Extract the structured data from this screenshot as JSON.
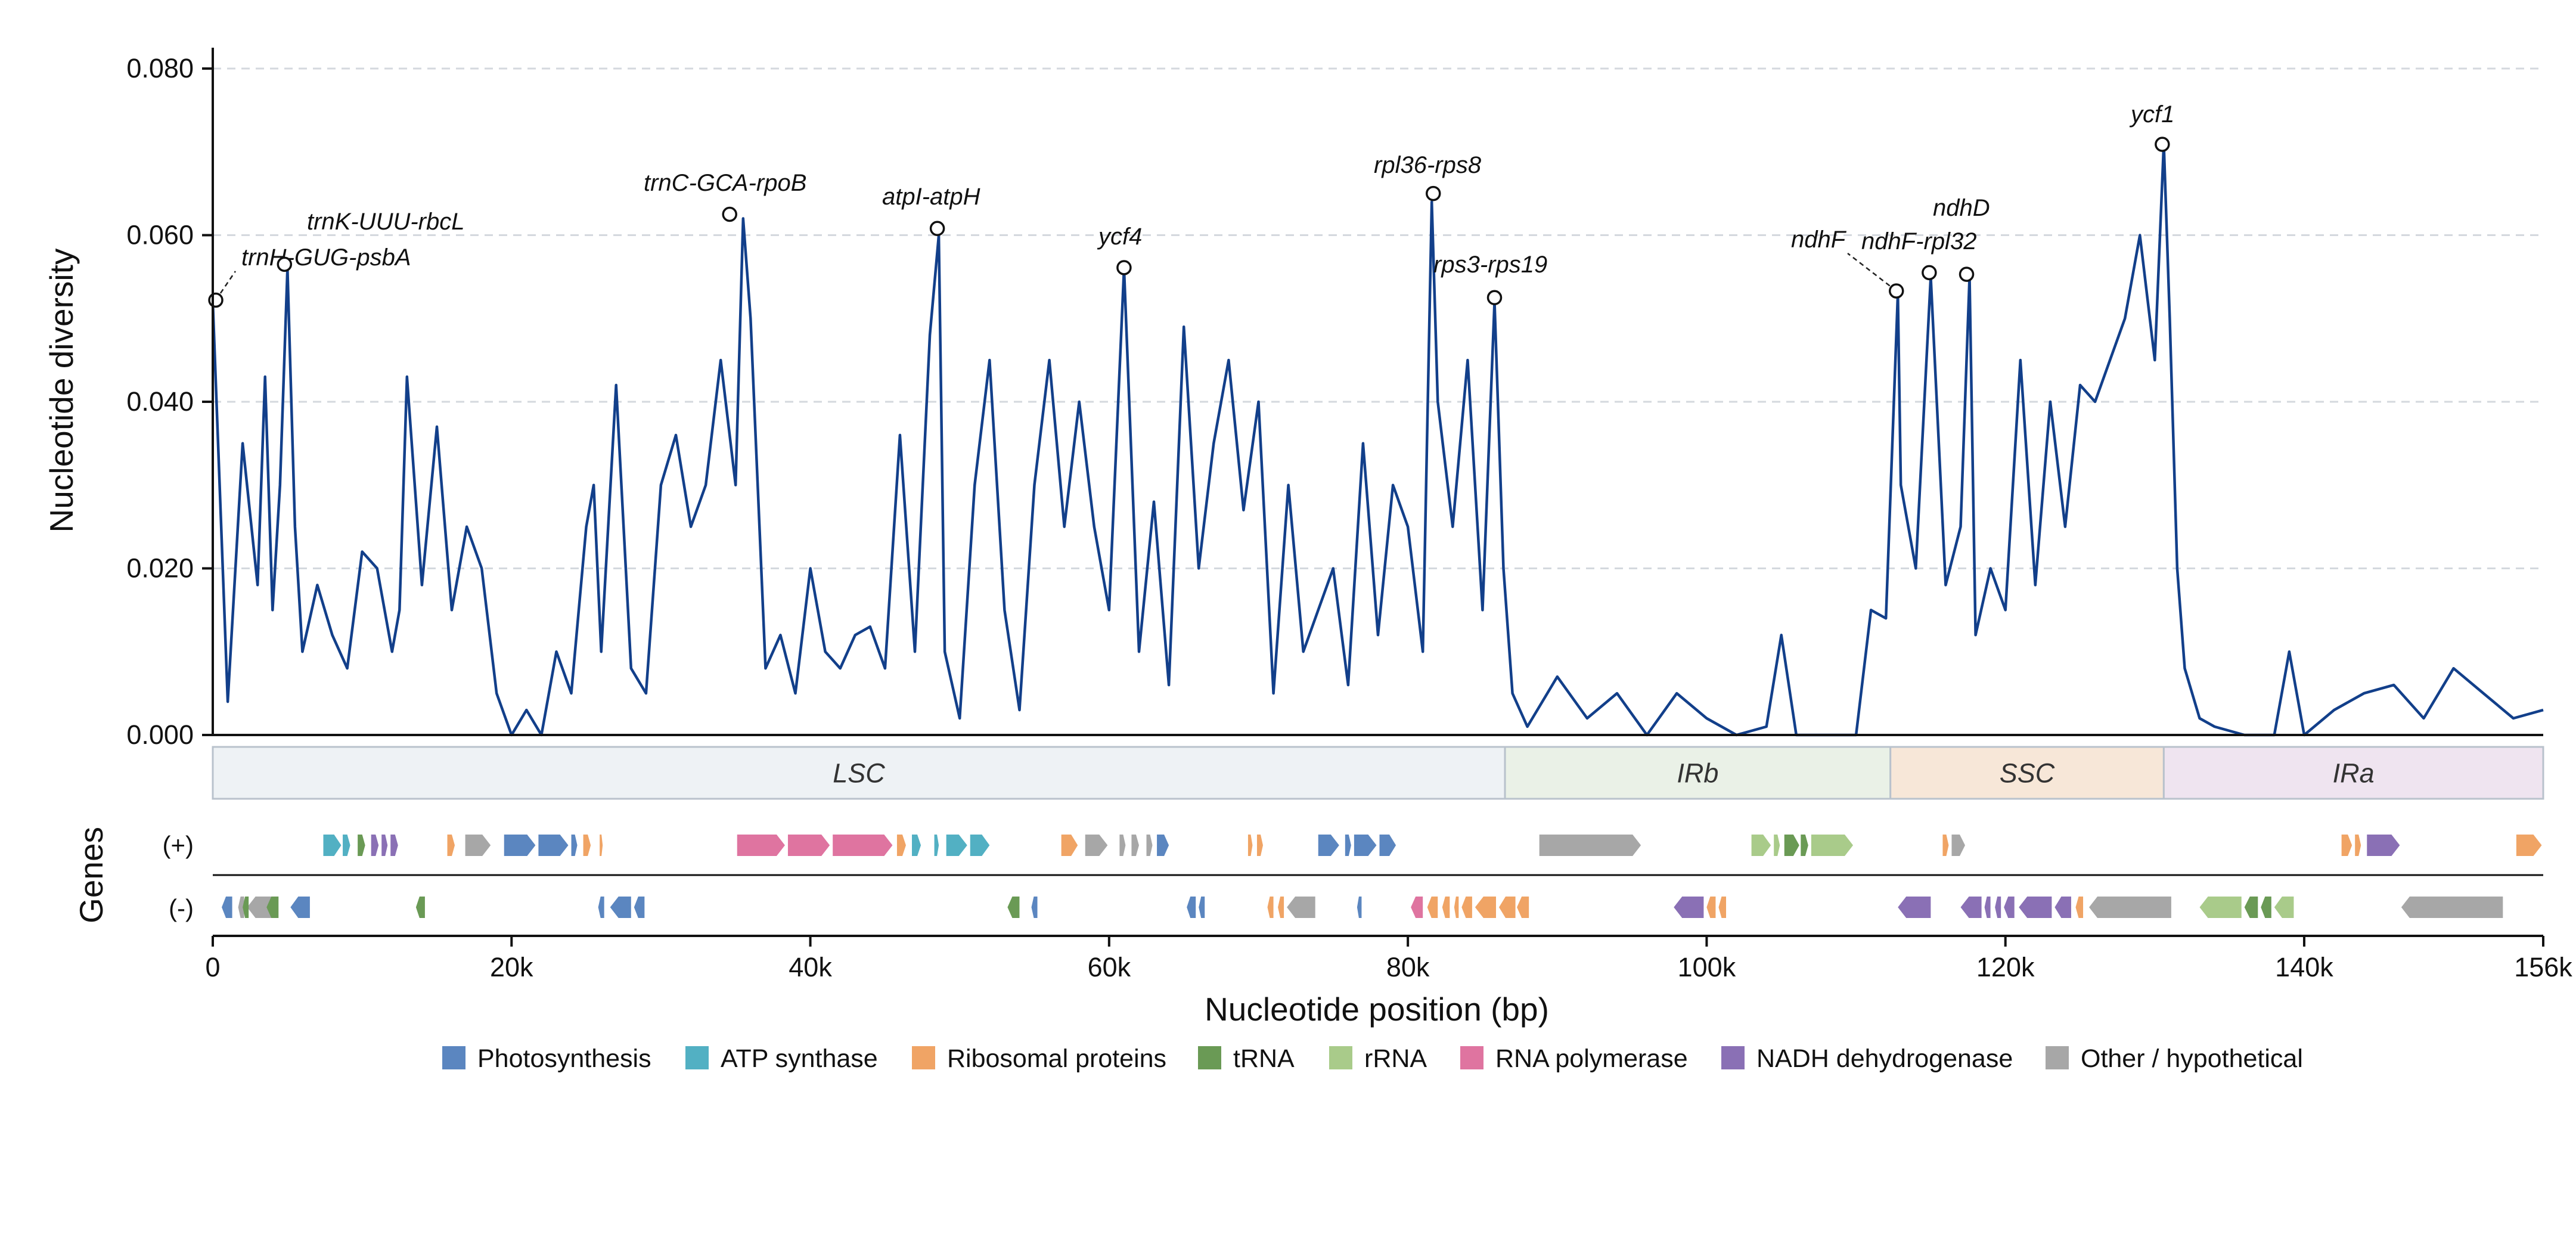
{
  "chart_data": {
    "type": "line",
    "ylabel": "Nucleotide diversity",
    "xlabel": "Nucleotide position (bp)",
    "xlim": [
      0,
      156000
    ],
    "ylim": [
      0,
      0.0825
    ],
    "yticks": [
      0.0,
      0.02,
      0.04,
      0.06,
      0.08
    ],
    "ytick_labels": [
      "0.000",
      "0.020",
      "0.040",
      "0.060",
      "0.080"
    ],
    "xticks": [
      0,
      20000,
      40000,
      60000,
      80000,
      100000,
      120000,
      140000,
      156000
    ],
    "xtick_labels": [
      "0",
      "20k",
      "40k",
      "60k",
      "80k",
      "100k",
      "120k",
      "140k",
      "156k"
    ],
    "grid": "horizontal dashed",
    "line_color": "#123f8a",
    "series": [
      {
        "x": [
          0,
          1000,
          2000,
          3000,
          3500,
          4000,
          4500,
          5000,
          5500,
          6000,
          7000,
          8000,
          9000,
          10000,
          11000,
          12000,
          12500,
          13000,
          14000,
          15000,
          16000,
          17000,
          18000,
          19000,
          20000,
          21000,
          22000,
          23000,
          24000,
          25000,
          25500,
          26000,
          27000,
          28000,
          29000,
          30000,
          31000,
          32000,
          33000,
          34000,
          35000,
          35500,
          36000,
          37000,
          38000,
          39000,
          40000,
          41000,
          42000,
          43000,
          44000,
          45000,
          46000,
          47000,
          48000,
          48600,
          49000,
          50000,
          51000,
          52000,
          53000,
          54000,
          55000,
          56000,
          57000,
          58000,
          59000,
          60000,
          61000,
          62000,
          63000,
          64000,
          65000,
          66000,
          67000,
          68000,
          69000,
          70000,
          71000,
          72000,
          73000,
          74000,
          75000,
          76000,
          77000,
          78000,
          79000,
          80000,
          81000,
          81600,
          82000,
          83000,
          84000,
          85000,
          85800,
          86400,
          87000,
          88000,
          90000,
          92000,
          94000,
          96000,
          98000,
          100000,
          102000,
          104000,
          105000,
          106000,
          108000,
          110000,
          111000,
          112000,
          112800,
          113000,
          114000,
          115000,
          116000,
          117000,
          117600,
          118000,
          119000,
          120000,
          121000,
          122000,
          123000,
          124000,
          125000,
          126000,
          127000,
          128000,
          129000,
          130000,
          130600,
          131000,
          131500,
          132000,
          133000,
          134000,
          136000,
          138000,
          139000,
          140000,
          142000,
          144000,
          146000,
          148000,
          150000,
          152000,
          154000,
          156000
        ],
        "y": [
          0.052,
          0.004,
          0.035,
          0.018,
          0.043,
          0.015,
          0.03,
          0.056,
          0.025,
          0.01,
          0.018,
          0.012,
          0.008,
          0.022,
          0.02,
          0.01,
          0.015,
          0.043,
          0.018,
          0.037,
          0.015,
          0.025,
          0.02,
          0.005,
          0.0,
          0.003,
          0.0,
          0.01,
          0.005,
          0.025,
          0.03,
          0.01,
          0.042,
          0.008,
          0.005,
          0.03,
          0.036,
          0.025,
          0.03,
          0.045,
          0.03,
          0.062,
          0.05,
          0.008,
          0.012,
          0.005,
          0.02,
          0.01,
          0.008,
          0.012,
          0.013,
          0.008,
          0.036,
          0.01,
          0.048,
          0.06,
          0.01,
          0.002,
          0.03,
          0.045,
          0.015,
          0.003,
          0.03,
          0.045,
          0.025,
          0.04,
          0.025,
          0.015,
          0.056,
          0.01,
          0.028,
          0.006,
          0.049,
          0.02,
          0.035,
          0.045,
          0.027,
          0.04,
          0.005,
          0.03,
          0.01,
          0.015,
          0.02,
          0.006,
          0.035,
          0.012,
          0.03,
          0.025,
          0.01,
          0.064,
          0.04,
          0.025,
          0.045,
          0.015,
          0.052,
          0.02,
          0.005,
          0.001,
          0.007,
          0.002,
          0.005,
          0.0,
          0.005,
          0.002,
          0.0,
          0.001,
          0.012,
          0.0,
          0.0,
          0.0,
          0.015,
          0.014,
          0.053,
          0.03,
          0.02,
          0.055,
          0.018,
          0.025,
          0.055,
          0.012,
          0.02,
          0.015,
          0.045,
          0.018,
          0.04,
          0.025,
          0.042,
          0.04,
          0.045,
          0.05,
          0.06,
          0.045,
          0.071,
          0.05,
          0.02,
          0.008,
          0.002,
          0.001,
          0.0,
          0.0,
          0.01,
          0.0,
          0.003,
          0.005,
          0.006,
          0.002,
          0.008,
          0.005,
          0.002,
          0.003
        ]
      }
    ],
    "annotations": [
      {
        "label": "trnH-GUG-psbA",
        "x": 200,
        "y": 0.0522
      },
      {
        "label": "trnK-UUU-rbcL",
        "x": 4800,
        "y": 0.0565
      },
      {
        "label": "trnC-GCA-rpoB",
        "x": 34600,
        "y": 0.0625
      },
      {
        "label": "atpI-atpH",
        "x": 48500,
        "y": 0.0608
      },
      {
        "label": "ycf4",
        "x": 61000,
        "y": 0.0561
      },
      {
        "label": "rpl36-rps8",
        "x": 81700,
        "y": 0.065
      },
      {
        "label": "rps3-rps19",
        "x": 85800,
        "y": 0.0525
      },
      {
        "label": "ndhF",
        "x": 112700,
        "y": 0.0533
      },
      {
        "label": "ndhF-rpl32",
        "x": 114900,
        "y": 0.0555
      },
      {
        "label": "ndhD",
        "x": 117400,
        "y": 0.0553
      },
      {
        "label": "ycf1",
        "x": 130500,
        "y": 0.0709
      }
    ],
    "regions": [
      {
        "label": "LSC",
        "start": 0,
        "end": 86500,
        "color": "#eef2f5"
      },
      {
        "label": "IRb",
        "start": 86500,
        "end": 112300,
        "color": "#eaf1e7"
      },
      {
        "label": "SSC",
        "start": 112300,
        "end": 130600,
        "color": "#f7e7d8"
      },
      {
        "label": "IRa",
        "start": 130600,
        "end": 156000,
        "color": "#efe4f0"
      }
    ],
    "genes_label": "Genes",
    "strand_labels": [
      "(+)",
      "(-)"
    ],
    "legend": [
      {
        "label": "Photosynthesis",
        "color": "#5b86c0"
      },
      {
        "label": "ATP synthase",
        "color": "#52b0c3"
      },
      {
        "label": "Ribosomal proteins",
        "color": "#f0a465"
      },
      {
        "label": "tRNA",
        "color": "#6a9a55"
      },
      {
        "label": "rRNA",
        "color": "#a9cb8a"
      },
      {
        "label": "RNA polymerase",
        "color": "#df74a0"
      },
      {
        "label": "NADH dehydrogenase",
        "color": "#8a70b5"
      },
      {
        "label": "Other / hypothetical",
        "color": "#a7a7a7"
      }
    ],
    "genes": [
      {
        "s": 7400,
        "e": 8600,
        "c": 1,
        "st": "+"
      },
      {
        "s": 8700,
        "e": 9200,
        "c": 1,
        "st": "+"
      },
      {
        "s": 9700,
        "e": 10200,
        "c": 3,
        "st": "+"
      },
      {
        "s": 10600,
        "e": 11100,
        "c": 6,
        "st": "+"
      },
      {
        "s": 11300,
        "e": 11700,
        "c": 6,
        "st": "+"
      },
      {
        "s": 11900,
        "e": 12400,
        "c": 6,
        "st": "+"
      },
      {
        "s": 15700,
        "e": 16200,
        "c": 2,
        "st": "+"
      },
      {
        "s": 16900,
        "e": 18600,
        "c": 7,
        "st": "+"
      },
      {
        "s": 19500,
        "e": 21600,
        "c": 0,
        "st": "+"
      },
      {
        "s": 21800,
        "e": 23800,
        "c": 0,
        "st": "+"
      },
      {
        "s": 24000,
        "e": 24400,
        "c": 0,
        "st": "+"
      },
      {
        "s": 24800,
        "e": 25300,
        "c": 2,
        "st": "+"
      },
      {
        "s": 25900,
        "e": 26100,
        "c": 2,
        "st": "+"
      },
      {
        "s": 35100,
        "e": 38300,
        "c": 5,
        "st": "+"
      },
      {
        "s": 38500,
        "e": 41300,
        "c": 5,
        "st": "+"
      },
      {
        "s": 41500,
        "e": 45500,
        "c": 5,
        "st": "+"
      },
      {
        "s": 45800,
        "e": 46400,
        "c": 2,
        "st": "+"
      },
      {
        "s": 46800,
        "e": 47400,
        "c": 1,
        "st": "+"
      },
      {
        "s": 48300,
        "e": 48600,
        "c": 1,
        "st": "+"
      },
      {
        "s": 49100,
        "e": 50500,
        "c": 1,
        "st": "+"
      },
      {
        "s": 50700,
        "e": 52000,
        "c": 1,
        "st": "+"
      },
      {
        "s": 56800,
        "e": 57900,
        "c": 2,
        "st": "+"
      },
      {
        "s": 58400,
        "e": 59900,
        "c": 7,
        "st": "+"
      },
      {
        "s": 60700,
        "e": 61100,
        "c": 7,
        "st": "+"
      },
      {
        "s": 61500,
        "e": 62000,
        "c": 7,
        "st": "+"
      },
      {
        "s": 62500,
        "e": 62900,
        "c": 7,
        "st": "+"
      },
      {
        "s": 63200,
        "e": 64000,
        "c": 0,
        "st": "+"
      },
      {
        "s": 69300,
        "e": 69600,
        "c": 2,
        "st": "+"
      },
      {
        "s": 69900,
        "e": 70300,
        "c": 2,
        "st": "+"
      },
      {
        "s": 74000,
        "e": 75400,
        "c": 0,
        "st": "+"
      },
      {
        "s": 75800,
        "e": 76200,
        "c": 0,
        "st": "+"
      },
      {
        "s": 76400,
        "e": 77900,
        "c": 0,
        "st": "+"
      },
      {
        "s": 78100,
        "e": 79200,
        "c": 0,
        "st": "+"
      },
      {
        "s": 88800,
        "e": 95600,
        "c": 7,
        "st": "+"
      },
      {
        "s": 103000,
        "e": 104300,
        "c": 4,
        "st": "+"
      },
      {
        "s": 104500,
        "e": 104900,
        "c": 4,
        "st": "+"
      },
      {
        "s": 105200,
        "e": 106200,
        "c": 3,
        "st": "+"
      },
      {
        "s": 106300,
        "e": 106800,
        "c": 3,
        "st": "+"
      },
      {
        "s": 107000,
        "e": 109800,
        "c": 4,
        "st": "+"
      },
      {
        "s": 115800,
        "e": 116200,
        "c": 2,
        "st": "+"
      },
      {
        "s": 116400,
        "e": 117300,
        "c": 7,
        "st": "+"
      },
      {
        "s": 142500,
        "e": 143200,
        "c": 2,
        "st": "+"
      },
      {
        "s": 143400,
        "e": 143800,
        "c": 2,
        "st": "+"
      },
      {
        "s": 144200,
        "e": 146400,
        "c": 6,
        "st": "+"
      },
      {
        "s": 154200,
        "e": 155900,
        "c": 2,
        "st": "+"
      },
      {
        "s": 600,
        "e": 1300,
        "c": 0,
        "st": "-"
      },
      {
        "s": 1700,
        "e": 2100,
        "c": 7,
        "st": "-"
      },
      {
        "s": 2300,
        "e": 4200,
        "c": 7,
        "st": "-"
      },
      {
        "s": 2000,
        "e": 2400,
        "c": 3,
        "st": "-"
      },
      {
        "s": 3600,
        "e": 4400,
        "c": 3,
        "st": "-"
      },
      {
        "s": 5200,
        "e": 6500,
        "c": 0,
        "st": "-"
      },
      {
        "s": 13600,
        "e": 14200,
        "c": 3,
        "st": "-"
      },
      {
        "s": 25800,
        "e": 26200,
        "c": 0,
        "st": "-"
      },
      {
        "s": 26600,
        "e": 28000,
        "c": 0,
        "st": "-"
      },
      {
        "s": 28200,
        "e": 28900,
        "c": 0,
        "st": "-"
      },
      {
        "s": 53200,
        "e": 54000,
        "c": 3,
        "st": "-"
      },
      {
        "s": 54800,
        "e": 55200,
        "c": 0,
        "st": "-"
      },
      {
        "s": 65200,
        "e": 65800,
        "c": 0,
        "st": "-"
      },
      {
        "s": 66000,
        "e": 66400,
        "c": 0,
        "st": "-"
      },
      {
        "s": 70600,
        "e": 71000,
        "c": 2,
        "st": "-"
      },
      {
        "s": 71300,
        "e": 71700,
        "c": 2,
        "st": "-"
      },
      {
        "s": 71900,
        "e": 73800,
        "c": 7,
        "st": "-"
      },
      {
        "s": 76600,
        "e": 76900,
        "c": 0,
        "st": "-"
      },
      {
        "s": 80200,
        "e": 81000,
        "c": 5,
        "st": "-"
      },
      {
        "s": 81300,
        "e": 82000,
        "c": 2,
        "st": "-"
      },
      {
        "s": 82300,
        "e": 82800,
        "c": 2,
        "st": "-"
      },
      {
        "s": 83100,
        "e": 83400,
        "c": 2,
        "st": "-"
      },
      {
        "s": 83600,
        "e": 84300,
        "c": 2,
        "st": "-"
      },
      {
        "s": 84500,
        "e": 85900,
        "c": 2,
        "st": "-"
      },
      {
        "s": 86100,
        "e": 87200,
        "c": 2,
        "st": "-"
      },
      {
        "s": 87300,
        "e": 88100,
        "c": 2,
        "st": "-"
      },
      {
        "s": 97800,
        "e": 99800,
        "c": 6,
        "st": "-"
      },
      {
        "s": 100000,
        "e": 100600,
        "c": 2,
        "st": "-"
      },
      {
        "s": 100800,
        "e": 101300,
        "c": 2,
        "st": "-"
      },
      {
        "s": 112800,
        "e": 115000,
        "c": 6,
        "st": "-"
      },
      {
        "s": 117000,
        "e": 118400,
        "c": 6,
        "st": "-"
      },
      {
        "s": 118600,
        "e": 119000,
        "c": 6,
        "st": "-"
      },
      {
        "s": 119300,
        "e": 119700,
        "c": 6,
        "st": "-"
      },
      {
        "s": 119900,
        "e": 120600,
        "c": 6,
        "st": "-"
      },
      {
        "s": 120900,
        "e": 123100,
        "c": 6,
        "st": "-"
      },
      {
        "s": 123300,
        "e": 124400,
        "c": 6,
        "st": "-"
      },
      {
        "s": 124700,
        "e": 125200,
        "c": 2,
        "st": "-"
      },
      {
        "s": 125600,
        "e": 131100,
        "c": 7,
        "st": "-"
      },
      {
        "s": 133000,
        "e": 135800,
        "c": 4,
        "st": "-"
      },
      {
        "s": 136000,
        "e": 136900,
        "c": 3,
        "st": "-"
      },
      {
        "s": 137100,
        "e": 137800,
        "c": 3,
        "st": "-"
      },
      {
        "s": 138000,
        "e": 139300,
        "c": 4,
        "st": "-"
      },
      {
        "s": 146500,
        "e": 153300,
        "c": 7,
        "st": "-"
      }
    ]
  }
}
